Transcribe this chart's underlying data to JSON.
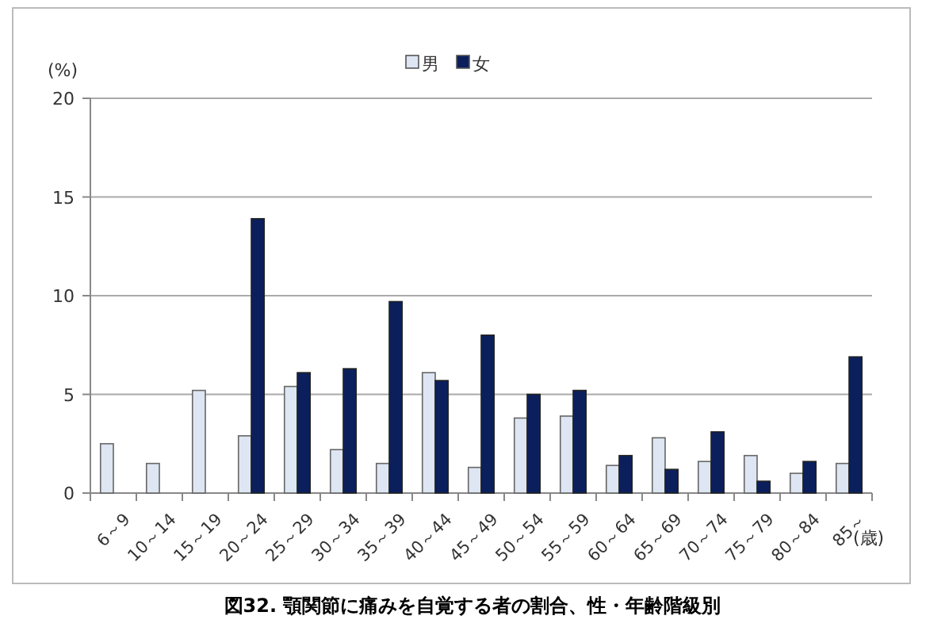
{
  "chart_data": {
    "type": "bar",
    "title": "図32.  顎関節に痛みを自覚する者の割合、性・年齢階級別",
    "ylabel": "(%)",
    "xlabel": "(歳)",
    "categories": [
      "6～9",
      "10～14",
      "15～19",
      "20～24",
      "25～29",
      "30～34",
      "35～39",
      "40～44",
      "45～49",
      "50～54",
      "55～59",
      "60～64",
      "65～69",
      "70～74",
      "75～79",
      "80～84",
      "85～"
    ],
    "series": [
      {
        "name": "男",
        "color": "#dde6f2",
        "values": [
          2.5,
          1.5,
          5.2,
          2.9,
          5.4,
          2.2,
          1.5,
          6.1,
          1.3,
          3.8,
          3.9,
          1.4,
          2.8,
          1.6,
          1.9,
          1.0,
          1.5
        ]
      },
      {
        "name": "女",
        "color": "#0a1f5c",
        "values": [
          null,
          null,
          null,
          13.9,
          6.1,
          6.3,
          9.7,
          5.7,
          8.0,
          5.0,
          5.2,
          1.9,
          1.2,
          3.1,
          0.6,
          1.6,
          6.9
        ]
      }
    ],
    "ylim": [
      0,
      20
    ],
    "yticks": [
      0,
      5,
      10,
      15,
      20
    ],
    "grid": "y",
    "legend": "top"
  }
}
